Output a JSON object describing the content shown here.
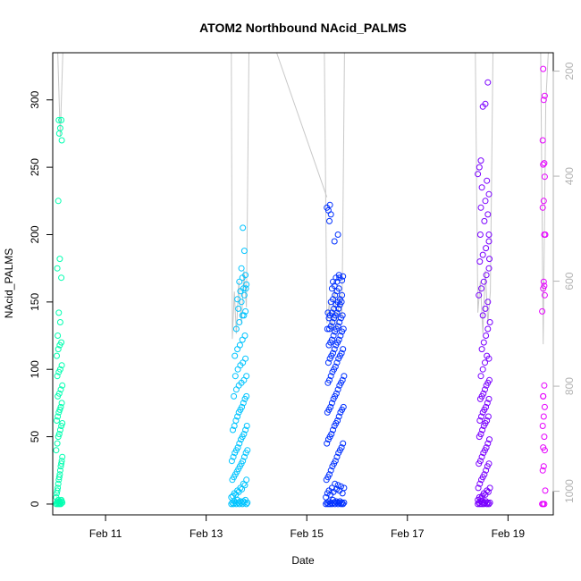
{
  "chart_data": {
    "type": "scatter",
    "title": "ATOM2 Northbound NAcid_PALMS",
    "xlabel": "Date",
    "ylabel": "NAcid_PALMS",
    "ylim": [
      -8,
      335
    ],
    "xlim": [
      9.95,
      19.9
    ],
    "x_ticks": [
      {
        "value": 11,
        "label": "Feb 11"
      },
      {
        "value": 13,
        "label": "Feb 13"
      },
      {
        "value": 15,
        "label": "Feb 15"
      },
      {
        "value": 17,
        "label": "Feb 17"
      },
      {
        "value": 19,
        "label": "Feb 19"
      }
    ],
    "y_ticks": [
      0,
      50,
      100,
      150,
      200,
      250,
      300
    ],
    "right_axis": {
      "range": [
        1045,
        165
      ],
      "ticks": [
        200,
        400,
        600,
        800,
        1000
      ],
      "color": "#b3b3b3"
    },
    "grid": false,
    "legend": "none",
    "colors": {
      "flight1": "#00FFB0",
      "flight2": "#00C4FF",
      "flight3": "#0030FF",
      "flight4": "#7A00FF",
      "flight5": "#E600FF",
      "altitude_trace": "#c8c8c8"
    },
    "series": [
      {
        "color": "#00FFB0",
        "x": [
          10.02,
          10.03,
          10.04,
          10.05,
          10.06,
          10.07,
          10.08,
          10.09,
          10.1,
          10.11,
          10.12,
          10.13,
          10.14,
          10.02,
          10.03,
          10.04,
          10.05,
          10.06,
          10.07,
          10.08,
          10.09,
          10.1,
          10.11,
          10.12,
          10.13,
          10.14,
          10.02,
          10.04,
          10.06,
          10.08,
          10.1,
          10.12,
          10.14,
          10.03,
          10.05,
          10.07,
          10.09,
          10.11,
          10.13,
          10.05,
          10.08,
          10.11,
          10.14,
          10.04,
          10.07,
          10.1,
          10.13,
          10.03,
          10.06,
          10.09,
          10.12,
          10.05,
          10.1,
          10.07,
          10.12,
          10.04,
          10.09,
          10.06,
          10.13,
          10.08,
          10.1,
          10.12,
          10.07
        ],
        "y": [
          0,
          1,
          2,
          0,
          3,
          1,
          0,
          2,
          1,
          0,
          3,
          2,
          1,
          5,
          8,
          10,
          12,
          15,
          18,
          20,
          22,
          25,
          28,
          30,
          32,
          35,
          40,
          45,
          50,
          52,
          55,
          58,
          60,
          62,
          65,
          68,
          70,
          72,
          75,
          80,
          82,
          85,
          88,
          95,
          98,
          100,
          103,
          110,
          115,
          118,
          120,
          125,
          135,
          142,
          168,
          175,
          182,
          225,
          270,
          275,
          279,
          285,
          285
        ]
      },
      {
        "color": "#00C4FF",
        "x": [
          13.5,
          13.52,
          13.54,
          13.56,
          13.58,
          13.6,
          13.62,
          13.64,
          13.66,
          13.68,
          13.7,
          13.72,
          13.74,
          13.76,
          13.78,
          13.8,
          13.82,
          13.5,
          13.53,
          13.56,
          13.59,
          13.62,
          13.65,
          13.68,
          13.71,
          13.74,
          13.77,
          13.8,
          13.52,
          13.55,
          13.58,
          13.61,
          13.64,
          13.67,
          13.7,
          13.73,
          13.76,
          13.79,
          13.82,
          13.51,
          13.54,
          13.57,
          13.6,
          13.63,
          13.66,
          13.69,
          13.72,
          13.75,
          13.78,
          13.81,
          13.53,
          13.56,
          13.59,
          13.62,
          13.65,
          13.68,
          13.71,
          13.74,
          13.77,
          13.8,
          13.55,
          13.6,
          13.65,
          13.7,
          13.75,
          13.8,
          13.58,
          13.63,
          13.68,
          13.73,
          13.78,
          13.57,
          13.62,
          13.67,
          13.72,
          13.77,
          13.6,
          13.66,
          13.72,
          13.78,
          13.64,
          13.7,
          13.76,
          13.62,
          13.68,
          13.74,
          13.8,
          13.66,
          13.72,
          13.78,
          13.7,
          13.76,
          13.73,
          13.79,
          13.75
        ],
        "y": [
          0,
          1,
          0,
          2,
          1,
          0,
          3,
          1,
          0,
          2,
          1,
          0,
          2,
          1,
          3,
          0,
          1,
          5,
          6,
          8,
          7,
          10,
          9,
          12,
          11,
          15,
          14,
          18,
          18,
          20,
          22,
          24,
          26,
          28,
          30,
          32,
          35,
          38,
          40,
          32,
          35,
          38,
          40,
          42,
          45,
          48,
          50,
          52,
          55,
          58,
          55,
          58,
          62,
          65,
          68,
          70,
          72,
          75,
          78,
          80,
          80,
          85,
          88,
          90,
          92,
          95,
          95,
          100,
          103,
          105,
          108,
          110,
          115,
          118,
          122,
          125,
          130,
          135,
          140,
          143,
          145,
          150,
          155,
          152,
          158,
          160,
          163,
          165,
          168,
          170,
          175,
          188,
          205,
          160,
          140
        ]
      },
      {
        "color": "#0030FF",
        "x": [
          15.38,
          15.4,
          15.42,
          15.44,
          15.46,
          15.48,
          15.5,
          15.52,
          15.54,
          15.56,
          15.58,
          15.6,
          15.62,
          15.64,
          15.66,
          15.68,
          15.7,
          15.72,
          15.74,
          15.38,
          15.41,
          15.44,
          15.47,
          15.5,
          15.53,
          15.56,
          15.59,
          15.62,
          15.65,
          15.68,
          15.71,
          15.74,
          15.39,
          15.42,
          15.45,
          15.48,
          15.51,
          15.54,
          15.57,
          15.6,
          15.63,
          15.66,
          15.69,
          15.72,
          15.4,
          15.43,
          15.46,
          15.49,
          15.52,
          15.55,
          15.58,
          15.61,
          15.64,
          15.67,
          15.7,
          15.73,
          15.41,
          15.44,
          15.47,
          15.5,
          15.53,
          15.56,
          15.59,
          15.62,
          15.65,
          15.68,
          15.71,
          15.74,
          15.42,
          15.45,
          15.48,
          15.51,
          15.54,
          15.57,
          15.6,
          15.63,
          15.66,
          15.69,
          15.72,
          15.43,
          15.46,
          15.49,
          15.52,
          15.55,
          15.58,
          15.61,
          15.64,
          15.67,
          15.7,
          15.73,
          15.44,
          15.47,
          15.5,
          15.53,
          15.56,
          15.59,
          15.62,
          15.65,
          15.68,
          15.71,
          15.45,
          15.48,
          15.51,
          15.54,
          15.57,
          15.6,
          15.63,
          15.66,
          15.69,
          15.46,
          15.5,
          15.54,
          15.58,
          15.62,
          15.66,
          15.7,
          15.48,
          15.52,
          15.56,
          15.6,
          15.64,
          15.5,
          15.55,
          15.6,
          15.65,
          15.52,
          15.58,
          15.64,
          15.55,
          15.62,
          15.45,
          15.48,
          15.4,
          15.43,
          15.46,
          15.42,
          15.44,
          15.41,
          15.7,
          15.72
        ],
        "y": [
          0,
          1,
          0,
          2,
          0,
          1,
          0,
          3,
          1,
          0,
          2,
          1,
          0,
          1,
          2,
          0,
          1,
          0,
          1,
          5,
          8,
          10,
          7,
          12,
          9,
          15,
          11,
          14,
          10,
          13,
          8,
          12,
          18,
          20,
          22,
          25,
          28,
          30,
          32,
          35,
          38,
          40,
          42,
          45,
          45,
          48,
          50,
          52,
          55,
          58,
          60,
          62,
          65,
          68,
          70,
          72,
          68,
          70,
          72,
          75,
          78,
          80,
          82,
          85,
          88,
          90,
          92,
          95,
          90,
          92,
          95,
          98,
          100,
          102,
          105,
          108,
          110,
          112,
          115,
          105,
          108,
          110,
          112,
          115,
          118,
          120,
          122,
          125,
          128,
          130,
          118,
          120,
          122,
          125,
          128,
          130,
          132,
          135,
          138,
          140,
          130,
          132,
          135,
          138,
          140,
          142,
          145,
          148,
          150,
          140,
          142,
          145,
          148,
          150,
          152,
          155,
          150,
          152,
          155,
          158,
          160,
          160,
          162,
          165,
          168,
          165,
          168,
          170,
          195,
          200,
          210,
          215,
          220,
          218,
          222,
          142,
          138,
          130,
          166,
          169
        ]
      },
      {
        "color": "#7A00FF",
        "x": [
          18.4,
          18.42,
          18.44,
          18.46,
          18.48,
          18.5,
          18.52,
          18.54,
          18.56,
          18.58,
          18.6,
          18.62,
          18.64,
          18.4,
          18.43,
          18.46,
          18.49,
          18.52,
          18.55,
          18.58,
          18.61,
          18.64,
          18.41,
          18.44,
          18.47,
          18.5,
          18.53,
          18.56,
          18.59,
          18.62,
          18.42,
          18.45,
          18.48,
          18.51,
          18.54,
          18.57,
          18.6,
          18.63,
          18.43,
          18.46,
          18.49,
          18.52,
          18.55,
          18.58,
          18.61,
          18.44,
          18.47,
          18.5,
          18.53,
          18.56,
          18.59,
          18.62,
          18.45,
          18.48,
          18.51,
          18.54,
          18.57,
          18.6,
          18.63,
          18.46,
          18.5,
          18.54,
          18.58,
          18.62,
          18.48,
          18.52,
          18.56,
          18.6,
          18.64,
          18.5,
          18.55,
          18.6,
          18.42,
          18.47,
          18.52,
          18.57,
          18.62,
          18.44,
          18.5,
          18.56,
          18.62,
          18.45,
          18.53,
          18.6,
          18.46,
          18.55,
          18.62,
          18.48,
          18.58,
          18.4,
          18.43,
          18.46,
          18.5,
          18.55,
          18.6,
          18.62,
          18.63
        ],
        "y": [
          0,
          1,
          0,
          2,
          0,
          1,
          0,
          1,
          2,
          0,
          1,
          0,
          1,
          3,
          5,
          4,
          6,
          8,
          7,
          10,
          9,
          12,
          12,
          15,
          18,
          20,
          22,
          25,
          28,
          30,
          30,
          32,
          35,
          38,
          40,
          42,
          45,
          48,
          50,
          52,
          55,
          58,
          60,
          62,
          65,
          62,
          65,
          68,
          70,
          72,
          75,
          78,
          78,
          80,
          82,
          85,
          88,
          90,
          92,
          95,
          100,
          105,
          110,
          108,
          115,
          120,
          125,
          130,
          135,
          140,
          145,
          150,
          155,
          160,
          165,
          170,
          175,
          180,
          185,
          190,
          195,
          200,
          210,
          215,
          220,
          225,
          230,
          235,
          240,
          245,
          250,
          255,
          295,
          297,
          313,
          200,
          182
        ]
      },
      {
        "color": "#E600FF",
        "x": [
          19.68,
          19.7,
          19.72,
          19.74,
          19.69,
          19.71,
          19.73,
          19.7,
          19.72,
          19.69,
          19.71,
          19.73,
          19.7,
          19.72,
          19.68,
          19.7,
          19.72,
          19.74,
          19.69,
          19.71,
          19.73,
          19.7,
          19.72,
          19.69,
          19.71,
          19.73,
          19.7,
          19.72,
          19.71,
          19.73,
          19.7
        ],
        "y": [
          0,
          0,
          0,
          10,
          25,
          28,
          40,
          42,
          50,
          58,
          65,
          72,
          80,
          88,
          143,
          160,
          162,
          200,
          220,
          225,
          243,
          252,
          253,
          270,
          300,
          303,
          323,
          200,
          165,
          155,
          80
        ]
      }
    ],
    "altitude_traces": [
      {
        "x": [
          10.05,
          10.1,
          10.15,
          12.5,
          14.4,
          15.4
        ],
        "y_alt": [
          160,
          325,
          160,
          160,
          160,
          440
        ]
      },
      {
        "x": [
          13.5,
          13.52,
          13.56,
          13.6,
          13.65,
          13.7,
          13.75,
          13.8,
          13.85
        ],
        "y_alt": [
          165,
          710,
          620,
          700,
          600,
          680,
          580,
          650,
          165
        ]
      },
      {
        "x": [
          15.35,
          15.4,
          15.45,
          15.5,
          15.55,
          15.6,
          15.65,
          15.7,
          15.75
        ],
        "y_alt": [
          165,
          680,
          640,
          700,
          610,
          690,
          620,
          670,
          165
        ]
      },
      {
        "x": [
          18.35,
          18.4,
          18.45,
          18.5,
          18.55,
          18.6,
          18.65,
          18.7
        ],
        "y_alt": [
          165,
          660,
          600,
          700,
          580,
          680,
          620,
          165
        ]
      },
      {
        "x": [
          19.65,
          19.7,
          19.75,
          19.8
        ],
        "y_alt": [
          165,
          720,
          260,
          165
        ]
      }
    ]
  }
}
